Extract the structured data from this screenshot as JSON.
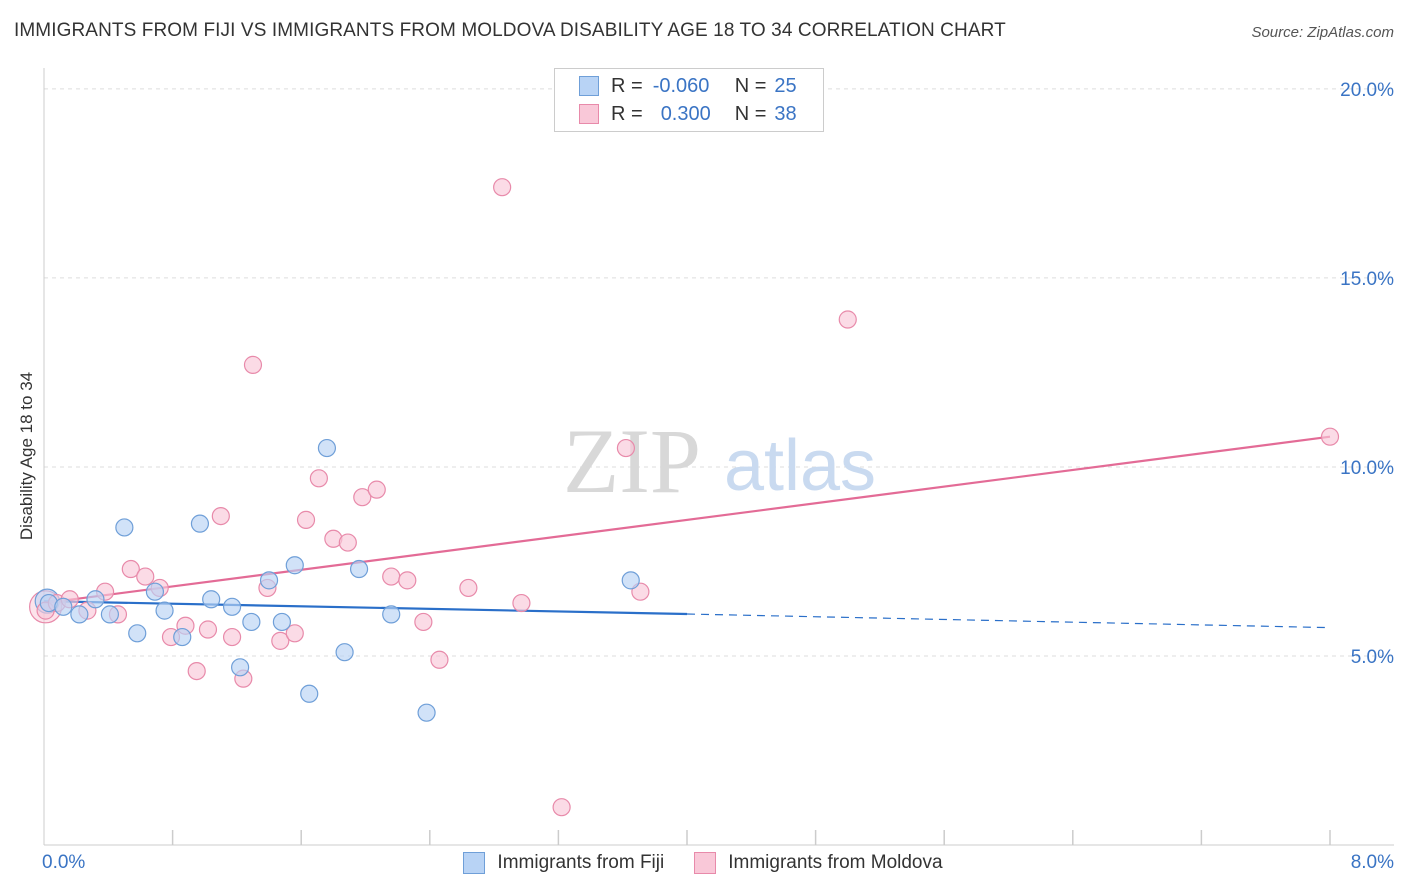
{
  "title": "IMMIGRANTS FROM FIJI VS IMMIGRANTS FROM MOLDOVA DISABILITY AGE 18 TO 34 CORRELATION CHART",
  "source": "Source: ZipAtlas.com",
  "watermark": {
    "zip": "ZIP",
    "atlas": "atlas"
  },
  "colors": {
    "fiji_fill": "#b8d3f5",
    "fiji_stroke": "#6f9fd8",
    "fiji_line": "#2a6fc9",
    "moldova_fill": "#f9c8d8",
    "moldova_stroke": "#e88aaa",
    "moldova_line": "#e36b96",
    "tick_text": "#3a74c4",
    "grid": "#dddddd"
  },
  "legend": {
    "fiji": {
      "r_label": "R =",
      "r_value": "-0.060",
      "n_label": "N =",
      "n_value": "25"
    },
    "moldova": {
      "r_label": "R =",
      "r_value": "0.300",
      "n_label": "N =",
      "n_value": "38"
    }
  },
  "series_labels": {
    "fiji": "Immigrants from Fiji",
    "moldova": "Immigrants from Moldova"
  },
  "chart_data": {
    "type": "scatter",
    "title": "IMMIGRANTS FROM FIJI VS IMMIGRANTS FROM MOLDOVA DISABILITY AGE 18 TO 34 CORRELATION CHART",
    "xlabel": "",
    "ylabel": "Disability Age 18 to 34",
    "xlim": [
      0,
      8
    ],
    "ylim": [
      0,
      20.5
    ],
    "x_tick_labels": [
      "0.0%",
      "8.0%"
    ],
    "y_ticks": [
      5,
      10,
      15,
      20
    ],
    "y_tick_labels": [
      "5.0%",
      "10.0%",
      "15.0%",
      "20.0%"
    ],
    "grid": true,
    "legend_position": "top-center",
    "series": [
      {
        "name": "Immigrants from Fiji",
        "points": [
          [
            0.03,
            6.4
          ],
          [
            0.12,
            6.3
          ],
          [
            0.22,
            6.1
          ],
          [
            0.32,
            6.5
          ],
          [
            0.41,
            6.1
          ],
          [
            0.5,
            8.4
          ],
          [
            0.58,
            5.6
          ],
          [
            0.69,
            6.7
          ],
          [
            0.75,
            6.2
          ],
          [
            0.86,
            5.5
          ],
          [
            0.97,
            8.5
          ],
          [
            1.04,
            6.5
          ],
          [
            1.17,
            6.3
          ],
          [
            1.22,
            4.7
          ],
          [
            1.29,
            5.9
          ],
          [
            1.4,
            7.0
          ],
          [
            1.48,
            5.9
          ],
          [
            1.56,
            7.4
          ],
          [
            1.65,
            4.0
          ],
          [
            1.76,
            10.5
          ],
          [
            1.87,
            5.1
          ],
          [
            1.96,
            7.3
          ],
          [
            2.16,
            6.1
          ],
          [
            2.38,
            3.5
          ],
          [
            3.65,
            7.0
          ]
        ],
        "trend": {
          "x": [
            0,
            4.0
          ],
          "y": [
            6.45,
            6.11
          ],
          "dashed_extension": {
            "x": [
              4.0,
              8.0
            ],
            "y": [
              6.11,
              5.75
            ]
          }
        }
      },
      {
        "name": "Immigrants from Moldova",
        "points": [
          [
            0.01,
            6.2
          ],
          [
            0.08,
            6.4
          ],
          [
            0.16,
            6.5
          ],
          [
            0.27,
            6.2
          ],
          [
            0.38,
            6.7
          ],
          [
            0.46,
            6.1
          ],
          [
            0.54,
            7.3
          ],
          [
            0.63,
            7.1
          ],
          [
            0.72,
            6.8
          ],
          [
            0.79,
            5.5
          ],
          [
            0.88,
            5.8
          ],
          [
            0.95,
            4.6
          ],
          [
            1.02,
            5.7
          ],
          [
            1.1,
            8.7
          ],
          [
            1.17,
            5.5
          ],
          [
            1.24,
            4.4
          ],
          [
            1.3,
            12.7
          ],
          [
            1.39,
            6.8
          ],
          [
            1.47,
            5.4
          ],
          [
            1.56,
            5.6
          ],
          [
            1.63,
            8.6
          ],
          [
            1.71,
            9.7
          ],
          [
            1.8,
            8.1
          ],
          [
            1.89,
            8.0
          ],
          [
            1.98,
            9.2
          ],
          [
            2.07,
            9.4
          ],
          [
            2.16,
            7.1
          ],
          [
            2.26,
            7.0
          ],
          [
            2.36,
            5.9
          ],
          [
            2.46,
            4.9
          ],
          [
            2.64,
            6.8
          ],
          [
            2.85,
            17.4
          ],
          [
            2.97,
            6.4
          ],
          [
            3.22,
            1.0
          ],
          [
            3.62,
            10.5
          ],
          [
            3.71,
            6.7
          ],
          [
            5.0,
            13.9
          ],
          [
            8.0,
            10.8
          ]
        ],
        "trend": {
          "x": [
            0,
            8.0
          ],
          "y": [
            6.4,
            10.8
          ]
        }
      }
    ]
  }
}
